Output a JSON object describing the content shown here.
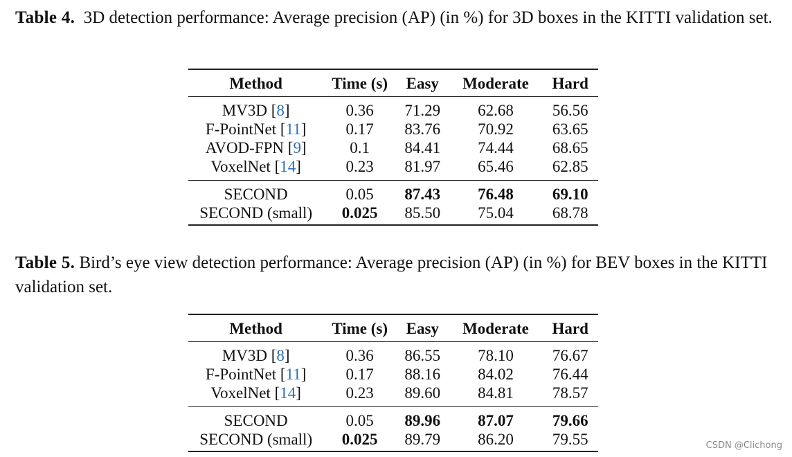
{
  "table4": {
    "label": "Table 4.",
    "caption": "3D detection performance: Average precision (AP) (in %) for 3D boxes in the KITTI validation set.",
    "headers": [
      "Method",
      "Time (s)",
      "Easy",
      "Moderate",
      "Hard"
    ],
    "groups": [
      [
        {
          "method": "MV3D",
          "ref": "8",
          "time": "0.36",
          "easy": "71.29",
          "moderate": "62.68",
          "hard": "56.56"
        },
        {
          "method": "F-PointNet",
          "ref": "11",
          "time": "0.17",
          "easy": "83.76",
          "moderate": "70.92",
          "hard": "63.65"
        },
        {
          "method": "AVOD-FPN",
          "ref": "9",
          "time": "0.1",
          "easy": "84.41",
          "moderate": "74.44",
          "hard": "68.65"
        },
        {
          "method": "VoxelNet",
          "ref": "14",
          "time": "0.23",
          "easy": "81.97",
          "moderate": "65.46",
          "hard": "62.85"
        }
      ],
      [
        {
          "method": "SECOND",
          "ref": "",
          "time": "0.05",
          "easy": "87.43",
          "moderate": "76.48",
          "hard": "69.10",
          "bold": [
            "easy",
            "moderate",
            "hard"
          ]
        },
        {
          "method": "SECOND (small)",
          "ref": "",
          "time": "0.025",
          "easy": "85.50",
          "moderate": "75.04",
          "hard": "68.78",
          "bold": [
            "time"
          ]
        }
      ]
    ]
  },
  "table5": {
    "label": "Table 5.",
    "caption": "Bird’s eye view detection performance: Average precision (AP) (in %) for BEV boxes in the KITTI validation set.",
    "headers": [
      "Method",
      "Time (s)",
      "Easy",
      "Moderate",
      "Hard"
    ],
    "groups": [
      [
        {
          "method": "MV3D",
          "ref": "8",
          "time": "0.36",
          "easy": "86.55",
          "moderate": "78.10",
          "hard": "76.67"
        },
        {
          "method": "F-PointNet",
          "ref": "11",
          "time": "0.17",
          "easy": "88.16",
          "moderate": "84.02",
          "hard": "76.44"
        },
        {
          "method": "VoxelNet",
          "ref": "14",
          "time": "0.23",
          "easy": "89.60",
          "moderate": "84.81",
          "hard": "78.57"
        }
      ],
      [
        {
          "method": "SECOND",
          "ref": "",
          "time": "0.05",
          "easy": "89.96",
          "moderate": "87.07",
          "hard": "79.66",
          "bold": [
            "easy",
            "moderate",
            "hard"
          ]
        },
        {
          "method": "SECOND (small)",
          "ref": "",
          "time": "0.025",
          "easy": "89.79",
          "moderate": "86.20",
          "hard": "79.55",
          "bold": [
            "time"
          ]
        }
      ]
    ]
  },
  "watermark": "CSDN @Clichong",
  "colors": {
    "reference_link": "#2a6db5",
    "text": "#111111",
    "watermark": "#8a8a8a"
  }
}
